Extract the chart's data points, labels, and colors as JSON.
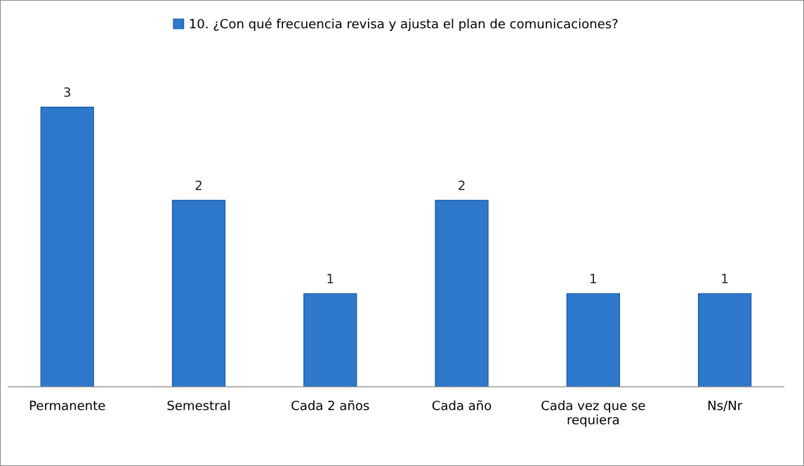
{
  "chart_data": {
    "type": "bar",
    "categories": [
      "Permanente",
      "Semestral",
      "Cada 2 años",
      "Cada año",
      "Cada vez que se\nrequiera",
      "Ns/Nr"
    ],
    "series": [
      {
        "name": "10. ¿Con qué frecuencia revisa y ajusta el plan de comunicaciones?",
        "color": "#2e78cc",
        "values": [
          3,
          2,
          1,
          2,
          1,
          1
        ]
      }
    ],
    "data_labels": true,
    "legend": "top",
    "grid": false
  }
}
